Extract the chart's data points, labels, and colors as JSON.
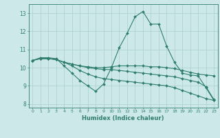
{
  "xlabel": "Humidex (Indice chaleur)",
  "x": [
    0,
    1,
    2,
    3,
    4,
    5,
    6,
    7,
    8,
    9,
    10,
    11,
    12,
    13,
    14,
    15,
    16,
    17,
    18,
    19,
    20,
    21,
    22,
    23
  ],
  "line1": [
    10.4,
    10.55,
    10.55,
    10.5,
    10.1,
    9.7,
    9.3,
    9.0,
    8.7,
    9.1,
    10.0,
    11.1,
    11.9,
    12.8,
    13.1,
    12.4,
    12.4,
    11.2,
    10.3,
    9.7,
    9.6,
    9.55,
    8.9,
    8.2
  ],
  "line2": [
    10.4,
    10.5,
    10.5,
    10.45,
    10.3,
    10.2,
    10.1,
    10.05,
    10.0,
    10.0,
    10.05,
    10.1,
    10.1,
    10.1,
    10.1,
    10.05,
    10.05,
    10.0,
    9.95,
    9.85,
    9.75,
    9.65,
    9.6,
    9.55
  ],
  "line3": [
    10.4,
    10.5,
    10.5,
    10.45,
    10.3,
    10.2,
    10.1,
    10.0,
    9.95,
    9.9,
    9.9,
    9.85,
    9.8,
    9.75,
    9.7,
    9.65,
    9.6,
    9.55,
    9.5,
    9.4,
    9.3,
    9.2,
    8.95,
    8.25
  ],
  "line4": [
    10.4,
    10.5,
    10.5,
    10.45,
    10.3,
    10.1,
    9.85,
    9.65,
    9.5,
    9.4,
    9.35,
    9.3,
    9.25,
    9.2,
    9.15,
    9.1,
    9.05,
    9.0,
    8.9,
    8.75,
    8.6,
    8.45,
    8.3,
    8.2
  ],
  "ylim": [
    7.8,
    13.5
  ],
  "yticks": [
    8,
    9,
    10,
    11,
    12,
    13
  ],
  "xticks": [
    0,
    1,
    2,
    3,
    4,
    5,
    6,
    7,
    8,
    9,
    10,
    11,
    12,
    13,
    14,
    15,
    16,
    17,
    18,
    19,
    20,
    21,
    22,
    23
  ],
  "line_color": "#2e7d6e",
  "bg_color": "#cce8e8",
  "grid_color": "#aacece"
}
